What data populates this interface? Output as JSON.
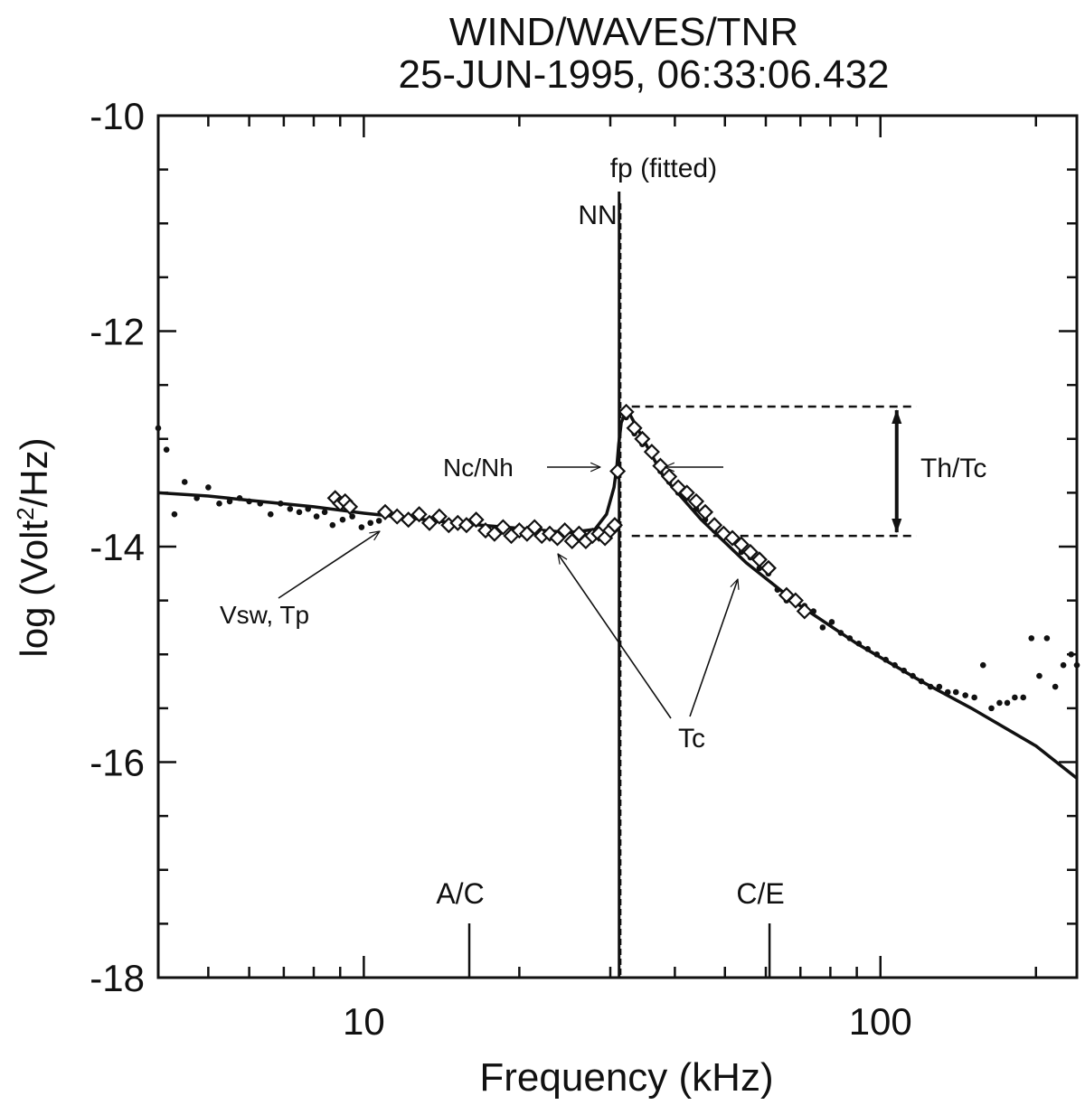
{
  "chart_data": {
    "type": "line",
    "title": "WIND/WAVES/TNR",
    "subtitle": "25-JUN-1995, 06:33:06.432",
    "xlabel": "Frequency (kHz)",
    "ylabel_main": "log (Volt",
    "ylabel_sup": "2",
    "ylabel_tail": "/Hz)",
    "xscale": "log",
    "xlim": [
      4,
      240
    ],
    "ylim": [
      -18,
      -10
    ],
    "xticks": [
      {
        "value": 10,
        "label": "10"
      },
      {
        "value": 100,
        "label": "100"
      }
    ],
    "yticks": [
      {
        "value": -10,
        "label": "-10"
      },
      {
        "value": -12,
        "label": "-12"
      },
      {
        "value": -14,
        "label": "-14"
      },
      {
        "value": -16,
        "label": "-16"
      },
      {
        "value": -18,
        "label": "-18"
      }
    ],
    "fp_fitted_khz": 31.2,
    "nn_khz": 30.9,
    "band_markers": [
      {
        "label": "A/C",
        "x": 16
      },
      {
        "label": "C/E",
        "x": 61
      }
    ],
    "fit_curve": {
      "name": "fitted model",
      "x": [
        4,
        5,
        6,
        8,
        10,
        12,
        15,
        20,
        25,
        28,
        29.5,
        30.5,
        30.9,
        31.15,
        31.5,
        32.3,
        34,
        38,
        45,
        55,
        70,
        90,
        120,
        150,
        200,
        240
      ],
      "y": [
        -13.5,
        -13.53,
        -13.57,
        -13.63,
        -13.69,
        -13.73,
        -13.78,
        -13.83,
        -13.87,
        -13.84,
        -13.7,
        -13.45,
        -13.25,
        -13.05,
        -12.85,
        -12.72,
        -12.92,
        -13.35,
        -13.75,
        -14.15,
        -14.55,
        -14.9,
        -15.25,
        -15.5,
        -15.85,
        -16.15
      ]
    },
    "data_points": {
      "name": "measured spectrum",
      "x": [
        4,
        4.15,
        4.3,
        4.5,
        4.75,
        5,
        5.25,
        5.5,
        5.75,
        6,
        6.3,
        6.6,
        6.9,
        7.2,
        7.5,
        7.8,
        8.1,
        8.4,
        8.7,
        9.1,
        9.5,
        9.9,
        10.3,
        10.7,
        32.2,
        33.4,
        34.6,
        36.1,
        37.5,
        39,
        40.6,
        42.2,
        44,
        45.8,
        47.7,
        49.7,
        51.7,
        53.8,
        56,
        58.3,
        60.7,
        63.2,
        65.8,
        68.5,
        71.3,
        74.2,
        77.3,
        80.5,
        83.8,
        87.2,
        90.8,
        94.5,
        98.4,
        102.4,
        106.6,
        111,
        115.5,
        120,
        125,
        130,
        135,
        140,
        146,
        152,
        158,
        164,
        170,
        176,
        182,
        189,
        196,
        203,
        210,
        218,
        226,
        234,
        240
      ],
      "y": [
        -12.9,
        -13.1,
        -13.7,
        -13.4,
        -13.55,
        -13.45,
        -13.6,
        -13.58,
        -13.55,
        -13.58,
        -13.6,
        -13.7,
        -13.6,
        -13.65,
        -13.68,
        -13.65,
        -13.72,
        -13.68,
        -13.8,
        -13.75,
        -13.72,
        -13.82,
        -13.78,
        -13.76,
        -12.8,
        -12.95,
        -13.05,
        -13.15,
        -13.3,
        -13.4,
        -13.5,
        -13.55,
        -13.65,
        -13.75,
        -13.85,
        -13.9,
        -13.95,
        -14.05,
        -14.1,
        -14.2,
        -14.25,
        -14.4,
        -14.5,
        -14.5,
        -14.55,
        -14.6,
        -14.75,
        -14.7,
        -14.8,
        -14.85,
        -14.9,
        -14.95,
        -15.0,
        -15.05,
        -15.1,
        -15.15,
        -15.2,
        -15.25,
        -15.3,
        -15.3,
        -15.35,
        -15.35,
        -15.38,
        -15.4,
        -15.1,
        -15.5,
        -15.45,
        -15.45,
        -15.4,
        -15.4,
        -14.85,
        -15.2,
        -14.85,
        -15.3,
        -15.1,
        -15.0,
        -15.1
      ]
    },
    "diamond_points": {
      "name": "points used in fit",
      "x": [
        8.8,
        9.0,
        9.2,
        9.4,
        11.0,
        11.6,
        12.2,
        12.8,
        13.4,
        14.0,
        14.6,
        15.2,
        15.8,
        16.5,
        17.2,
        17.9,
        18.6,
        19.3,
        20.0,
        20.7,
        21.4,
        22.1,
        22.9,
        23.7,
        24.5,
        25.3,
        26.1,
        26.9,
        27.7,
        28.5,
        29.3,
        30.0,
        30.6,
        31.0,
        32.2,
        33.4,
        34.6,
        36.1,
        37.5,
        39.0,
        40.6,
        42.2,
        44.0,
        45.8,
        47.7,
        49.7,
        51.7,
        53.8,
        56.0,
        58.3,
        60.7,
        65.8,
        68.5,
        71.3
      ],
      "y": [
        -13.55,
        -13.6,
        -13.58,
        -13.63,
        -13.68,
        -13.72,
        -13.75,
        -13.7,
        -13.78,
        -13.72,
        -13.8,
        -13.78,
        -13.8,
        -13.75,
        -13.85,
        -13.88,
        -13.82,
        -13.9,
        -13.85,
        -13.88,
        -13.82,
        -13.9,
        -13.88,
        -13.92,
        -13.85,
        -13.95,
        -13.88,
        -13.95,
        -13.9,
        -13.88,
        -13.92,
        -13.85,
        -13.8,
        -13.3,
        -12.75,
        -12.9,
        -13.0,
        -13.12,
        -13.25,
        -13.35,
        -13.45,
        -13.5,
        -13.58,
        -13.68,
        -13.8,
        -13.88,
        -13.92,
        -13.98,
        -14.05,
        -14.12,
        -14.2,
        -14.45,
        -14.5,
        -14.6
      ]
    },
    "annotations": {
      "fp_label": "fp (fitted)",
      "nn_label": "NN",
      "nc_nh": "Nc/Nh",
      "vsw_tp": "Vsw, Tp",
      "tc": "Tc",
      "th_tc": "Th/Tc"
    },
    "levels": {
      "upper": -12.7,
      "lower": -13.9,
      "th_tc_x_khz": 100
    }
  }
}
